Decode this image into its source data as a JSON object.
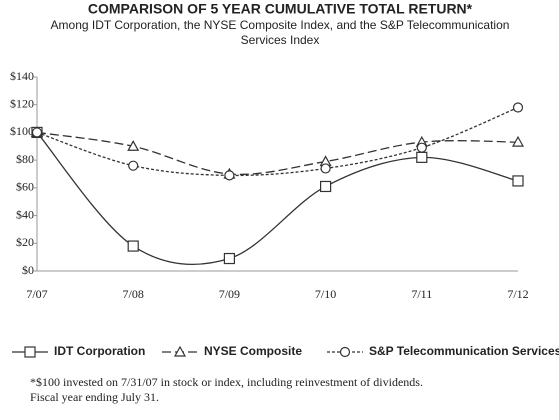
{
  "chart_data": {
    "type": "line",
    "title": "COMPARISON OF 5 YEAR CUMULATIVE TOTAL RETURN*",
    "subtitle": [
      "Among IDT Corporation, the NYSE Composite Index, and the S&P Telecommunication",
      "Services Index"
    ],
    "categories": [
      "7/07",
      "7/08",
      "7/09",
      "7/10",
      "7/11",
      "7/12"
    ],
    "series": [
      {
        "name": "IDT Corporation",
        "color": "#333333",
        "marker": "square",
        "line_style": "solid",
        "values": [
          100,
          18,
          9,
          61,
          82,
          65
        ]
      },
      {
        "name": "NYSE Composite",
        "color": "#333333",
        "marker": "triangle",
        "line_style": "dashed",
        "values": [
          100,
          90,
          70,
          79,
          93,
          93
        ]
      },
      {
        "name": "S&P Telecommunication Services",
        "color": "#333333",
        "marker": "circle",
        "line_style": "dotted",
        "values": [
          100,
          76,
          69,
          74,
          89,
          118
        ]
      }
    ],
    "ylim": [
      0,
      140
    ],
    "yticks": [
      {
        "value": 0,
        "label": "$0"
      },
      {
        "value": 20,
        "label": "$20"
      },
      {
        "value": 40,
        "label": "$40"
      },
      {
        "value": 60,
        "label": "$60"
      },
      {
        "value": 80,
        "label": "$80"
      },
      {
        "value": 100,
        "label": "$100"
      },
      {
        "value": 120,
        "label": "$120"
      },
      {
        "value": 140,
        "label": "$140"
      }
    ],
    "grid": false,
    "smooth": true,
    "footnote": [
      "*$100 invested on 7/31/07 in stock or index, including reinvestment of dividends.",
      "Fiscal year ending July 31."
    ]
  }
}
